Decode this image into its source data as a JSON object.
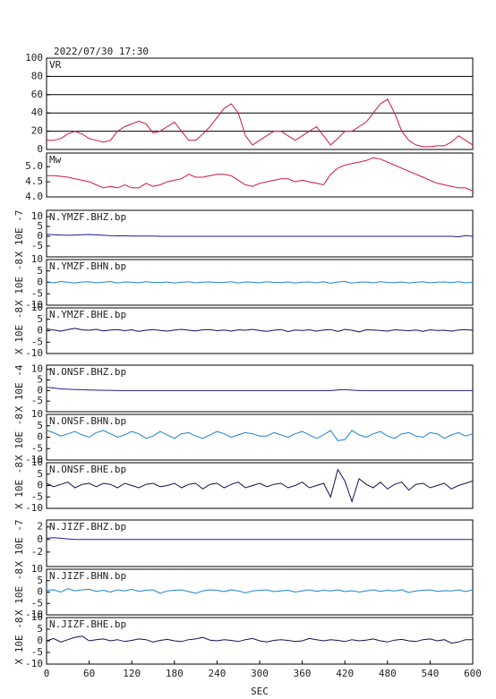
{
  "chart_data": {
    "type": "line",
    "title": "2022/07/30 17:30",
    "xlabel": "SEC",
    "xlim": [
      0,
      600
    ],
    "xticks": [
      0,
      60,
      120,
      180,
      240,
      300,
      360,
      420,
      480,
      540,
      600
    ],
    "x": [
      0,
      10,
      20,
      30,
      40,
      50,
      60,
      70,
      80,
      90,
      100,
      110,
      120,
      130,
      140,
      150,
      160,
      170,
      180,
      190,
      200,
      210,
      220,
      230,
      240,
      250,
      260,
      270,
      280,
      290,
      300,
      310,
      320,
      330,
      340,
      350,
      360,
      370,
      380,
      390,
      400,
      410,
      420,
      430,
      440,
      450,
      460,
      470,
      480,
      490,
      500,
      510,
      520,
      530,
      540,
      550,
      560,
      570,
      580,
      590,
      600
    ],
    "panels": [
      {
        "label": "VR",
        "color": "#d4143c",
        "grid": true,
        "ylim": [
          0,
          100
        ],
        "yticks": [
          0,
          20,
          40,
          60,
          80,
          100
        ],
        "values": [
          10,
          10,
          12,
          17,
          20,
          17,
          12,
          10,
          8,
          10,
          20,
          25,
          28,
          31,
          28,
          18,
          20,
          25,
          30,
          20,
          10,
          10,
          17,
          25,
          35,
          45,
          50,
          40,
          15,
          5,
          10,
          15,
          20,
          20,
          15,
          10,
          15,
          20,
          25,
          15,
          5,
          12,
          20,
          20,
          25,
          30,
          40,
          50,
          55,
          40,
          20,
          10,
          5,
          3,
          3,
          4,
          4,
          8,
          15,
          10,
          5
        ]
      },
      {
        "label": "Mw",
        "color": "#d4143c",
        "ylim": [
          4.0,
          5.45
        ],
        "yticks": [
          {
            "value": 4,
            "label": "4.0"
          },
          4.5,
          {
            "value": 5,
            "label": "5.0"
          }
        ],
        "values": [
          4.7,
          4.7,
          4.68,
          4.65,
          4.6,
          4.55,
          4.5,
          4.4,
          4.3,
          4.35,
          4.3,
          4.4,
          4.3,
          4.3,
          4.45,
          4.35,
          4.4,
          4.5,
          4.55,
          4.6,
          4.75,
          4.65,
          4.65,
          4.7,
          4.75,
          4.75,
          4.7,
          4.55,
          4.4,
          4.35,
          4.45,
          4.5,
          4.55,
          4.6,
          4.6,
          4.5,
          4.55,
          4.5,
          4.45,
          4.4,
          4.75,
          4.95,
          5.05,
          5.1,
          5.15,
          5.2,
          5.3,
          5.25,
          5.15,
          5.05,
          4.95,
          4.85,
          4.75,
          4.65,
          4.55,
          4.45,
          4.4,
          4.35,
          4.3,
          4.3,
          4.2
        ]
      },
      {
        "label": "N.YMZF.BHZ.bp",
        "unit_label": "X 10E -7",
        "color": "#1c1ca0",
        "ylim": [
          -10.5,
          13.2
        ],
        "yticks": [
          10,
          5,
          0,
          -5
        ],
        "values": [
          1,
          0.8,
          0.6,
          0.5,
          0.6,
          0.8,
          0.9,
          0.7,
          0.5,
          0.3,
          0.2,
          0.2,
          0.1,
          0.1,
          0.1,
          0.1,
          0,
          0,
          0,
          0,
          0,
          0,
          0,
          0,
          0,
          0,
          0,
          0,
          0,
          0,
          0,
          0,
          0,
          0,
          0,
          0,
          0,
          0,
          0,
          0,
          0,
          0,
          0,
          0,
          0,
          0,
          0,
          0,
          0,
          0,
          0,
          0,
          0,
          0,
          0,
          0,
          0,
          0,
          -0.3,
          0.3,
          0
        ]
      },
      {
        "label": "N.YMZF.BHN.bp",
        "unit_label": "X 10E -8",
        "color": "#1e82d2",
        "ylim": [
          -10,
          10
        ],
        "yticks": [
          10,
          5,
          0,
          -5,
          -10
        ],
        "values": [
          0.3,
          -0.2,
          0.4,
          0.1,
          -0.3,
          0.2,
          0.3,
          -0.2,
          0.1,
          0.4,
          -0.3,
          0.2,
          0.1,
          -0.2,
          0.3,
          0,
          -0.1,
          0.2,
          -0.3,
          0.1,
          0.3,
          -0.2,
          0.1,
          0.2,
          -0.1,
          0,
          0.3,
          -0.3,
          0.2,
          0.1,
          -0.2,
          0.3,
          0,
          -0.1,
          0.2,
          -0.3,
          0.1,
          0.2,
          -0.2,
          0.3,
          -0.4,
          0.2,
          0.4,
          -0.3,
          0.1,
          0.2,
          -0.2,
          0.3,
          0,
          -0.1,
          0.2,
          -0.3,
          0.1,
          0.3,
          -0.2,
          0.1,
          0.2,
          -0.1,
          0.3,
          -0.2,
          0.1
        ]
      },
      {
        "label": "N.YMZF.BHE.bp",
        "unit_label": "X 10E -8",
        "color": "#10105a",
        "ylim": [
          -10,
          10
        ],
        "yticks": [
          10,
          5,
          0,
          -5,
          -10
        ],
        "values": [
          0.8,
          0.3,
          -0.2,
          0.5,
          1,
          0.4,
          0.2,
          0.6,
          -0.1,
          0.3,
          0.5,
          0,
          0.4,
          -0.3,
          0.2,
          0.5,
          0.1,
          -0.2,
          0.3,
          0.6,
          0.2,
          -0.1,
          0.4,
          0.5,
          0,
          0.3,
          -0.2,
          0.4,
          0.2,
          0.6,
          0.1,
          -0.3,
          0.2,
          0.5,
          -0.4,
          0.3,
          0.1,
          0.4,
          -0.2,
          0.3,
          0.5,
          -0.3,
          0.6,
          0.2,
          -0.5,
          0.4,
          0.3,
          0.1,
          -0.2,
          0.4,
          0.2,
          0,
          0.3,
          -0.3,
          0.4,
          0.1,
          0.2,
          -0.2,
          0.3,
          0.5,
          0.2
        ]
      },
      {
        "label": "N.ONSF.BHZ.bp",
        "unit_label": "X 10E -4",
        "color": "#1c1ca0",
        "ylim": [
          -10,
          12
        ],
        "yticks": [
          10,
          5,
          0,
          -5
        ],
        "values": [
          1.5,
          1.2,
          0.8,
          0.6,
          0.5,
          0.4,
          0.3,
          0.2,
          0.1,
          0.1,
          0,
          0,
          0,
          0,
          0,
          0,
          0,
          0,
          0,
          0,
          0,
          0,
          0,
          0,
          0,
          0,
          0,
          0,
          0,
          0,
          0,
          0,
          0,
          0,
          0,
          0,
          0,
          0,
          0,
          0,
          0,
          0.3,
          0.5,
          0.2,
          0,
          0,
          0,
          0,
          0,
          0,
          0,
          0,
          0,
          0,
          0,
          0,
          0,
          0,
          0,
          0,
          0
        ]
      },
      {
        "label": "N.ONSF.BHN.bp",
        "unit_label": "X 10E -8",
        "color": "#1e82d2",
        "ylim": [
          -10,
          10
        ],
        "yticks": [
          10,
          5,
          0,
          -5,
          -10
        ],
        "values": [
          3,
          2,
          0.5,
          1.5,
          2.5,
          1,
          0,
          2,
          3,
          1.5,
          0,
          1,
          2.5,
          1.5,
          -0.5,
          0.5,
          2.5,
          1,
          -0.5,
          1.5,
          2,
          0.5,
          -0.5,
          1,
          2.5,
          1.5,
          0,
          1,
          2,
          1.5,
          0.5,
          0.5,
          2,
          1,
          0,
          1.5,
          2.5,
          1,
          -0.5,
          1,
          3,
          -1.5,
          -1,
          3,
          1,
          0,
          1.5,
          2.5,
          0.5,
          -0.5,
          1.5,
          2,
          0.5,
          0,
          2,
          1.5,
          -0.5,
          1,
          2,
          0.5,
          1.5
        ]
      },
      {
        "label": "N.ONSF.BHE.bp",
        "unit_label": "X 10E -8",
        "color": "#10105a",
        "ylim": [
          -10,
          10
        ],
        "yticks": [
          10,
          5,
          0,
          -5,
          -10
        ],
        "values": [
          1,
          -0.5,
          0.5,
          1.5,
          -1,
          0.5,
          1,
          -0.5,
          1,
          0.5,
          -1,
          1,
          0,
          -1,
          0.5,
          1,
          -0.5,
          0,
          1,
          -1,
          0.5,
          1,
          -1.5,
          0.5,
          1,
          -1,
          0.5,
          1.5,
          -1,
          0,
          1,
          -0.5,
          0.5,
          1,
          -1,
          0,
          1.5,
          -1,
          0,
          1,
          -5,
          7,
          2,
          -7,
          3,
          0.5,
          -1,
          1.5,
          -1.5,
          0.5,
          1.5,
          -2,
          0.5,
          1,
          -1,
          0,
          1,
          -1.5,
          0,
          1,
          2
        ]
      },
      {
        "label": "N.JIZF.BHZ.bp",
        "unit_label": "X 10E -7",
        "color": "#1c1ca0",
        "ylim": [
          -4.3,
          3.1
        ],
        "yticks": [
          2,
          0,
          -2
        ],
        "values": [
          0.2,
          0.3,
          0.2,
          0.1,
          0,
          0,
          0,
          0,
          0,
          0,
          0,
          0,
          0,
          0,
          0,
          0,
          0,
          0,
          0,
          0,
          0,
          0,
          0,
          0,
          0,
          0,
          0,
          0,
          0,
          0,
          0,
          0,
          0,
          0,
          0,
          0,
          0,
          0,
          0,
          0,
          0,
          0,
          0,
          0,
          0,
          0,
          0,
          0,
          0,
          0,
          0,
          0,
          0,
          0,
          0,
          0,
          0,
          0,
          0,
          0,
          0
        ]
      },
      {
        "label": "N.JIZF.BHN.bp",
        "unit_label": "X 10E -8",
        "color": "#1e82d2",
        "ylim": [
          -10,
          10
        ],
        "yticks": [
          10,
          5,
          0,
          -5,
          -10
        ],
        "values": [
          0.8,
          1,
          0,
          1.5,
          0.5,
          1,
          1.2,
          0.3,
          0.8,
          0,
          1,
          0.5,
          1.2,
          0.3,
          0.8,
          1,
          -0.5,
          0.5,
          0.8,
          1,
          0.2,
          -0.5,
          0.5,
          1,
          0.8,
          0.2,
          1,
          0.5,
          -0.3,
          0.5,
          0.8,
          1,
          0.2,
          0.5,
          0.8,
          0,
          0.5,
          1,
          0.3,
          0.8,
          0.5,
          1,
          0.2,
          0.6,
          0,
          0.5,
          1,
          0.3,
          0.8,
          0.5,
          1,
          -0.2,
          0.5,
          0.8,
          1,
          0.3,
          0.6,
          0.5,
          1,
          0.2,
          1
        ]
      },
      {
        "label": "N.JIZF.BHE.bp",
        "unit_label": "X 10E -8",
        "color": "#10105a",
        "ylim": [
          -10,
          10
        ],
        "yticks": [
          10,
          5,
          0,
          -5,
          -10
        ],
        "values": [
          0,
          1,
          -0.5,
          0.5,
          1.5,
          2,
          0,
          0.5,
          0.8,
          0,
          0.5,
          -0.3,
          0.2,
          0.8,
          0.5,
          -0.5,
          0.2,
          0.6,
          0,
          -0.3,
          0.5,
          0.8,
          1.5,
          0.3,
          0,
          0.5,
          0.2,
          -0.3,
          0.5,
          1,
          0,
          -0.5,
          0.2,
          0.5,
          0.2,
          -0.3,
          0,
          1,
          0.5,
          0,
          0.5,
          0.2,
          -0.3,
          0.5,
          0,
          0.3,
          0.8,
          0,
          -0.5,
          0.3,
          0.6,
          0,
          -0.3,
          0.5,
          0.8,
          0,
          0.5,
          -1,
          -0.5,
          0.5,
          0.5
        ]
      }
    ]
  }
}
